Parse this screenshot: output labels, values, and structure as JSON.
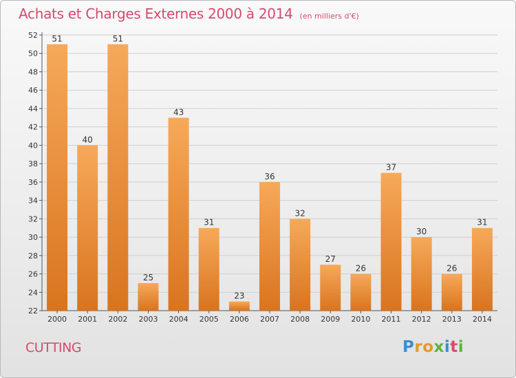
{
  "title": "Achats et Charges Externes 2000 à 2014",
  "subtitle": "(en milliers d'€)",
  "footer_label": "CUTTING",
  "logo": {
    "letters": [
      "P",
      "r",
      "o",
      "x",
      "i",
      "t",
      "i"
    ],
    "colors": [
      "#3a8fd1",
      "#e39a2b",
      "#e39a2b",
      "#5db43c",
      "#3a8fd1",
      "#d44a6e",
      "#5db43c"
    ]
  },
  "colors": {
    "accent": "#d44a6e",
    "bar_top": "#f6a95a",
    "bar_bottom": "#d9741e",
    "grid": "#cfcfcf"
  },
  "chart_data": {
    "type": "bar",
    "categories": [
      "2000",
      "2001",
      "2002",
      "2003",
      "2004",
      "2005",
      "2006",
      "2007",
      "2008",
      "2009",
      "2010",
      "2011",
      "2012",
      "2013",
      "2014"
    ],
    "values": [
      51,
      40,
      51,
      25,
      43,
      31,
      23,
      36,
      32,
      27,
      26,
      37,
      30,
      26,
      31
    ],
    "ylim": [
      22,
      52
    ],
    "yticks": [
      22,
      24,
      26,
      28,
      30,
      32,
      34,
      36,
      38,
      40,
      42,
      44,
      46,
      48,
      50,
      52
    ],
    "grid": true,
    "data_labels": true,
    "title": "Achats et Charges Externes 2000 à 2014",
    "xlabel": "",
    "ylabel": ""
  }
}
